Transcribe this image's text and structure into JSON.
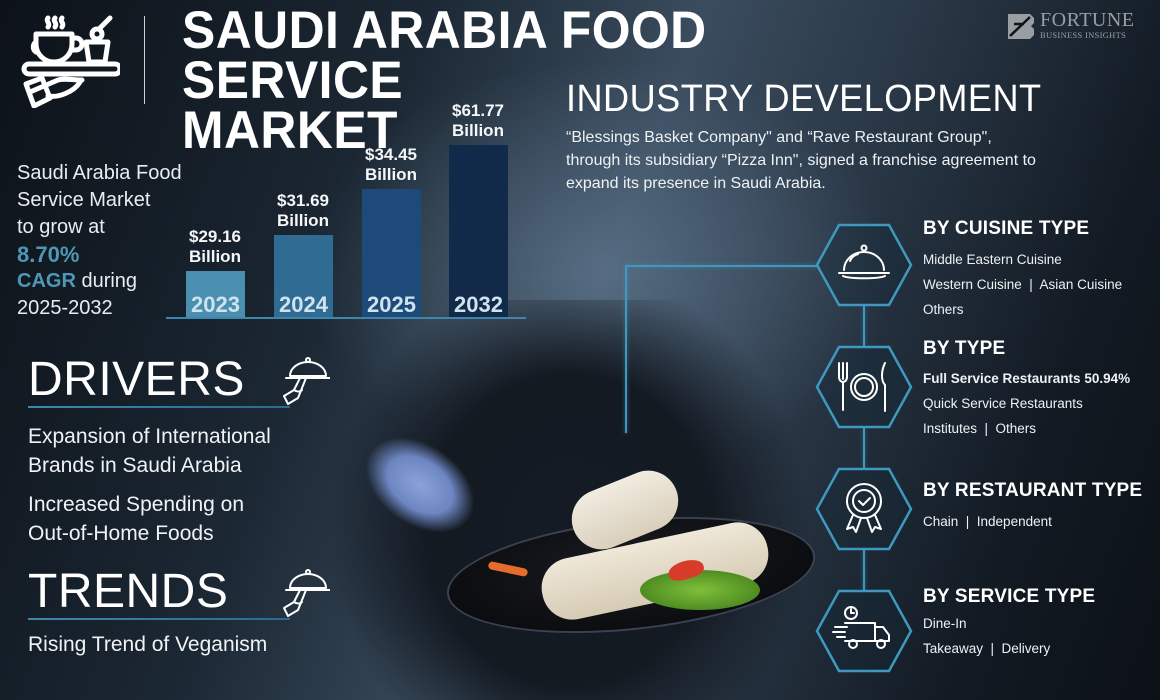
{
  "header": {
    "title_line1": "SAUDI ARABIA FOOD SERVICE",
    "title_line2": "MARKET",
    "brand_name": "FORTUNE",
    "brand_sub": "BUSINESS INSIGHTS"
  },
  "industry_development": {
    "title": "INDUSTRY DEVELOPMENT",
    "text": "“Blessings Basket Company\" and “Rave Restaurant Group\", through its subsidiary “Pizza Inn\", signed a franchise agreement to expand its presence in Saudi Arabia."
  },
  "cagr": {
    "line1": "Saudi Arabia Food",
    "line2": "Service Market",
    "line3": "to grow at",
    "rate": "8.70%",
    "cagr_label": "CAGR",
    "during": " during",
    "period": "2025-2032"
  },
  "chart_data": {
    "type": "bar",
    "title": "Saudi Arabia Food Service Market",
    "categories": [
      "2023",
      "2024",
      "2025",
      "2032"
    ],
    "values": [
      29.16,
      31.69,
      34.45,
      61.77
    ],
    "unit": "USD Billion",
    "labels": [
      "$29.16",
      "$31.69",
      "$34.45",
      "$61.77"
    ],
    "label_suffix": "Billion",
    "colors": [
      "#4a8fb0",
      "#2f6b93",
      "#1d4a78",
      "#112a4a"
    ],
    "xlabel": "",
    "ylabel": "",
    "grid": false,
    "legend": "none"
  },
  "drivers": {
    "title": "DRIVERS",
    "items": [
      "Expansion of International Brands in Saudi Arabia",
      "Increased Spending on Out-of-Home Foods"
    ],
    "items_lines": [
      [
        "Expansion of International",
        "Brands in Saudi Arabia"
      ],
      [
        "Increased Spending on",
        "Out-of-Home Foods"
      ]
    ]
  },
  "trends": {
    "title": "TRENDS",
    "items": [
      "Rising Trend of Veganism"
    ]
  },
  "segments": [
    {
      "title": "BY CUISINE TYPE",
      "icon": "cloche-icon",
      "lines": [
        "Middle Eastern Cuisine",
        "Western Cuisine  |  Asian Cuisine",
        "Others"
      ]
    },
    {
      "title": "BY TYPE",
      "icon": "fork-plate-knife-icon",
      "lines": [
        "Full Service Restaurants 50.94%",
        "Quick Service Restaurants",
        "Institutes  |  Others"
      ]
    },
    {
      "title": "BY RESTAURANT TYPE",
      "icon": "award-badge-icon",
      "lines": [
        "Chain  |  Independent"
      ]
    },
    {
      "title": "BY SERVICE TYPE",
      "icon": "delivery-truck-icon",
      "lines": [
        "Dine-In",
        "Takeaway  |  Delivery"
      ]
    }
  ],
  "colors": {
    "accent_blue": "#4f97b8",
    "connector": "#3f98bf",
    "text": "#ffffff",
    "brand_gray": "#9a9ea3"
  }
}
